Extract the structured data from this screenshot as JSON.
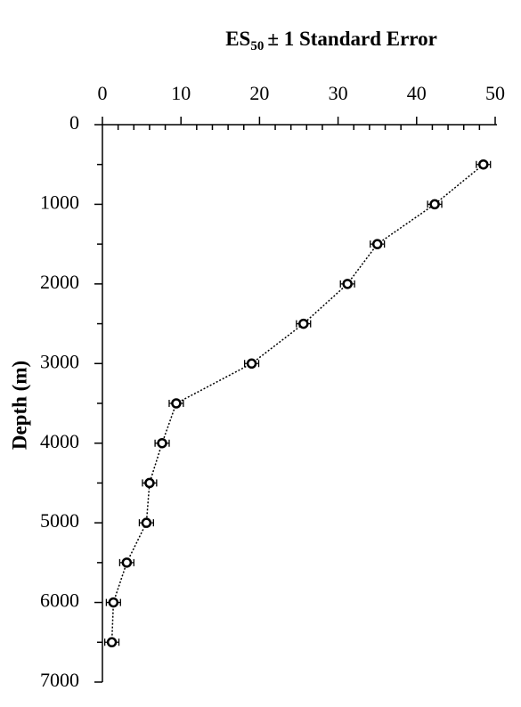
{
  "chart_data": {
    "type": "scatter",
    "title": {
      "text": "ES",
      "subscript": "50",
      "suffix": "± 1 Standard Error"
    },
    "y_label": "Depth (m)",
    "series": [
      {
        "color": "#000000",
        "x": [
          48.5,
          42.3,
          35.0,
          31.2,
          25.6,
          19.0,
          9.4,
          7.6,
          6.0,
          5.6,
          3.1,
          1.4,
          1.2
        ],
        "xerr": [
          0.9,
          0.9,
          0.9,
          0.9,
          0.9,
          0.9,
          0.9,
          0.9,
          0.9,
          0.9,
          0.9,
          0.9,
          0.9
        ],
        "y": [
          500,
          1000,
          1500,
          2000,
          2500,
          3000,
          3500,
          4000,
          4500,
          5000,
          5500,
          6000,
          6500
        ]
      }
    ],
    "xlim": [
      0,
      50
    ],
    "xticks": [
      0,
      10,
      20,
      30,
      40,
      50
    ],
    "xminorticks": [
      2,
      4,
      6,
      8,
      12,
      14,
      16,
      18,
      22,
      24,
      26,
      28,
      32,
      34,
      36,
      38,
      42,
      44,
      46,
      48
    ],
    "ylim": [
      0,
      7000
    ],
    "yticks": [
      0,
      1000,
      2000,
      3000,
      4000,
      5000,
      6000,
      7000
    ],
    "yminorticks": [
      500,
      1500,
      2500,
      3500,
      4500,
      5500,
      6500
    ],
    "y_inverted": true,
    "x_axis_position": "top",
    "line_style": "dotted"
  }
}
